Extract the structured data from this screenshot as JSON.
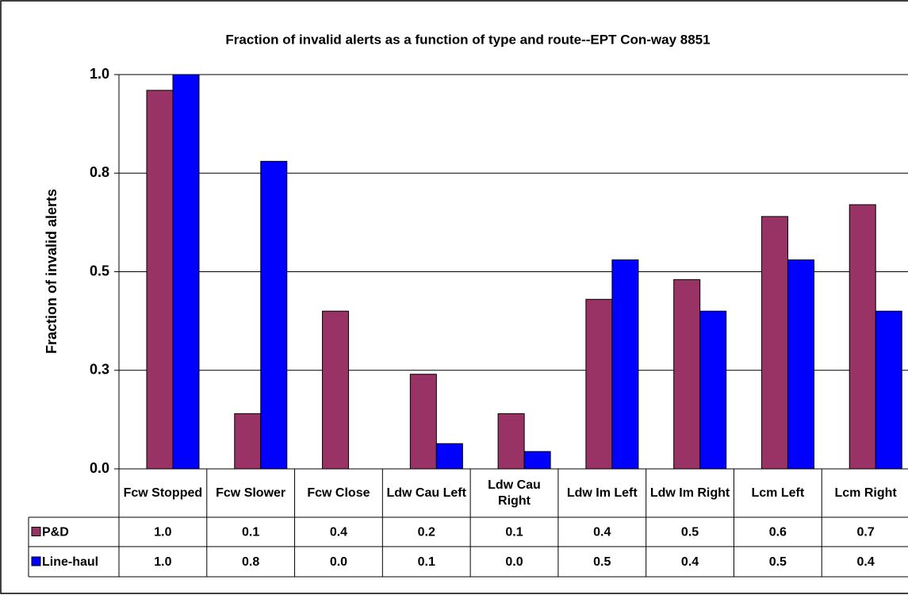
{
  "chart_data": {
    "type": "bar",
    "title": "Fraction of invalid alerts as a function of type and route--EPT Con-way  8851",
    "y_label": "Fraction of invalid alerts",
    "categories": [
      "Fcw Stopped",
      "Fcw Slower",
      "Fcw Close",
      "Ldw Cau Left",
      "Ldw Cau Right",
      "Ldw Im Left",
      "Ldw Im Right",
      "Lcm  Left",
      "Lcm Right"
    ],
    "series": [
      {
        "name": "P&D",
        "color": "#993366",
        "values": [
          0.96,
          0.14,
          0.4,
          0.24,
          0.14,
          0.43,
          0.48,
          0.64,
          0.67
        ],
        "value_labels": [
          "1.0",
          "0.1",
          "0.4",
          "0.2",
          "0.1",
          "0.4",
          "0.5",
          "0.6",
          "0.7"
        ]
      },
      {
        "name": "Line-haul",
        "color": "#0000ff",
        "values": [
          1.0,
          0.78,
          0,
          0.064,
          0.044,
          0.53,
          0.4,
          0.53,
          0.4
        ],
        "value_labels": [
          "1.0",
          "0.8",
          "0.0",
          "0.1",
          "0.0",
          "0.5",
          "0.4",
          "0.5",
          "0.4"
        ]
      }
    ],
    "ylim": [
      0,
      1
    ],
    "yticks": [
      {
        "value": 0,
        "label": "0.0"
      },
      {
        "value": 0.25,
        "label": "0.3"
      },
      0.5,
      {
        "value": 0.75,
        "label": "0.8"
      },
      {
        "value": 1,
        "label": "1.0"
      }
    ],
    "grid": true
  }
}
